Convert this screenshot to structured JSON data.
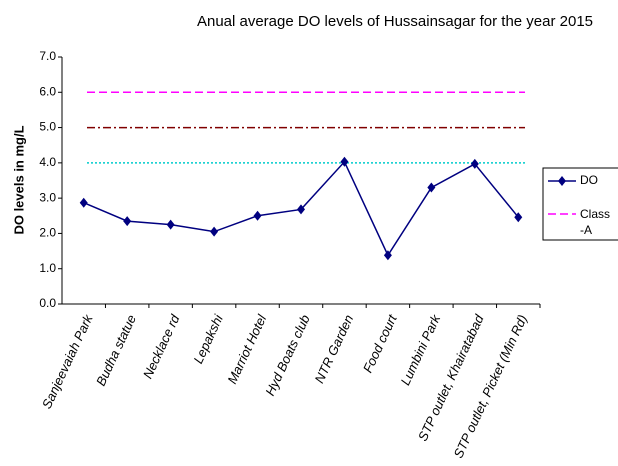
{
  "chart_data": {
    "type": "line",
    "title": "Anual average DO levels of Hussainsagar for the year 2015",
    "y_label": "DO levels in mg/L",
    "categories": [
      "Sanjeevaiah Park",
      "Budha statue",
      "Necklace rd",
      "Lepakshi",
      "Marriot Hotel",
      "Hyd Boats club",
      "NTR Garden",
      "Food court",
      "Lumbini Park",
      "STP outlet, Khairatabad",
      "STP outlet, Picket (Min Rd)"
    ],
    "series": [
      {
        "name": "DO",
        "color": "#000080",
        "values": [
          2.87,
          2.35,
          2.25,
          2.05,
          2.5,
          2.68,
          4.03,
          1.38,
          3.3,
          3.97,
          2.46
        ]
      }
    ],
    "reference_lines": [
      {
        "value": 6.0,
        "color": "#ff00ff",
        "style": "dashed",
        "name": "Class -A"
      },
      {
        "value": 5.0,
        "color": "#800000",
        "style": "dashdot"
      },
      {
        "value": 4.0,
        "color": "#00cccc",
        "style": "dotted"
      }
    ],
    "ylim": [
      0,
      7
    ],
    "yticks": [
      {
        "value": 0,
        "label": "0.0"
      },
      {
        "value": 1,
        "label": "1.0"
      },
      {
        "value": 2,
        "label": "2.0"
      },
      {
        "value": 3,
        "label": "3.0"
      },
      {
        "value": 4,
        "label": "4.0"
      },
      {
        "value": 5,
        "label": "5.0"
      },
      {
        "value": 6,
        "label": "6.0"
      },
      {
        "value": 7,
        "label": "7.0"
      }
    ],
    "legend": "right"
  }
}
